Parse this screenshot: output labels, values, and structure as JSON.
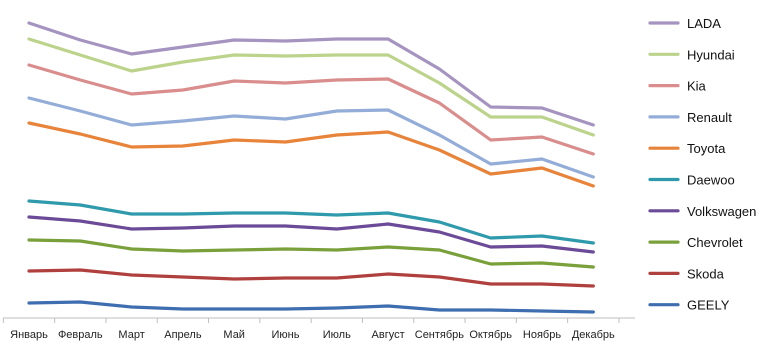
{
  "chart_data": {
    "type": "line",
    "title": "",
    "xlabel": "",
    "ylabel": "",
    "grid": false,
    "legend_position": "right",
    "y_axis_visible": false,
    "categories": [
      "Январь",
      "Февраль",
      "Март",
      "Апрель",
      "Май",
      "Июнь",
      "Июль",
      "Август",
      "Сентябрь",
      "Октябрь",
      "Ноябрь",
      "Декабрь"
    ],
    "series": [
      {
        "name": "LADA",
        "color": "#a594c0",
        "values": [
          295,
          278,
          264,
          271,
          278,
          277,
          279,
          279,
          249,
          211,
          210,
          193
        ]
      },
      {
        "name": "Hyundai",
        "color": "#bcd38b",
        "values": [
          279,
          263,
          247,
          256,
          263,
          262,
          263,
          263,
          235,
          201,
          201,
          183
        ]
      },
      {
        "name": "Kia",
        "color": "#d98d8c",
        "values": [
          253,
          238,
          224,
          228,
          237,
          235,
          238,
          239,
          215,
          178,
          181,
          164
        ]
      },
      {
        "name": "Renault",
        "color": "#93add8",
        "values": [
          220,
          207,
          193,
          197,
          202,
          199,
          207,
          208,
          183,
          154,
          159,
          141
        ]
      },
      {
        "name": "Toyota",
        "color": "#e8833a",
        "values": [
          195,
          184,
          171,
          172,
          178,
          176,
          183,
          186,
          168,
          144,
          150,
          132
        ]
      },
      {
        "name": "Daewoo",
        "color": "#2f9aac",
        "values": [
          117,
          113,
          104,
          104,
          105,
          105,
          103,
          105,
          96,
          80,
          82,
          75
        ]
      },
      {
        "name": "Volkswagen",
        "color": "#6b4a97",
        "values": [
          101,
          97,
          89,
          90,
          92,
          92,
          89,
          94,
          86,
          71,
          72,
          66
        ]
      },
      {
        "name": "Chevrolet",
        "color": "#79a03a",
        "values": [
          78,
          77,
          69,
          67,
          68,
          69,
          68,
          71,
          68,
          54,
          55,
          51
        ]
      },
      {
        "name": "Skoda",
        "color": "#b0403e",
        "values": [
          47,
          48,
          43,
          41,
          39,
          40,
          40,
          44,
          41,
          34,
          34,
          32
        ]
      },
      {
        "name": "GEELY",
        "color": "#3e6eb0",
        "values": [
          15,
          16,
          11,
          9,
          9,
          9,
          10,
          12,
          8,
          8,
          7,
          6
        ]
      }
    ]
  }
}
